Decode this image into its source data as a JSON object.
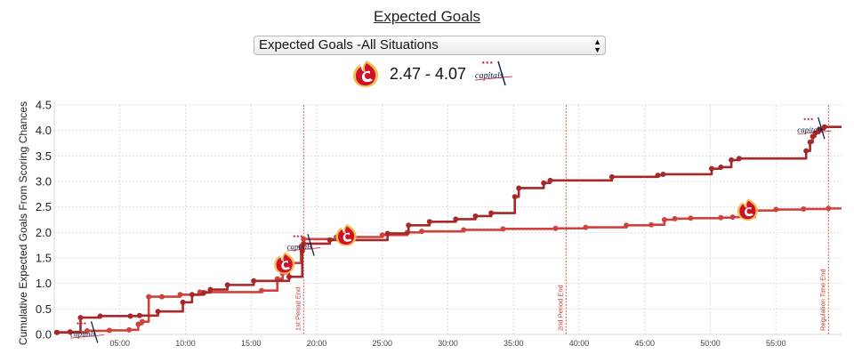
{
  "page": {
    "title": "Expected Goals",
    "situation_selected": "Expected Goals -All Situations",
    "score_text": "2.47 - 4.07",
    "home_logo_icon": "calgary-flames-logo",
    "away_logo_icon": "washington-capitals-logo",
    "away_logo_wordmark": "capitals"
  },
  "colors": {
    "flames_line": "#d0423c",
    "capitals_line": "#a72828",
    "period_marker": "#c0392b",
    "flames_red": "#ce1126",
    "flames_gold": "#f3bc52",
    "capitals_navy": "#041e42"
  },
  "chart_data": {
    "type": "line",
    "title": "",
    "xlabel": "",
    "ylabel": "Cumulative Expected Goals From Scoring Chances",
    "xlim": [
      0,
      60
    ],
    "ylim": [
      0,
      4.5
    ],
    "grid": true,
    "x_ticks": [
      "05:00",
      "10:00",
      "15:00",
      "20:00",
      "25:00",
      "30:00",
      "35:00",
      "40:00",
      "45:00",
      "50:00",
      "55:00"
    ],
    "x_tick_values": [
      5,
      10,
      15,
      20,
      25,
      30,
      35,
      40,
      45,
      50,
      55
    ],
    "y_ticks": [
      "0.0",
      "0.5",
      "1.0",
      "1.5",
      "2.0",
      "2.5",
      "3.0",
      "3.5",
      "4.0",
      "4.5"
    ],
    "y_tick_values": [
      0,
      0.5,
      1,
      1.5,
      2,
      2.5,
      3,
      3.5,
      4,
      4.5
    ],
    "period_markers": [
      {
        "x": 19.0,
        "label": "1st Period End"
      },
      {
        "x": 39.0,
        "label": "2nd Period End"
      },
      {
        "x": 59.0,
        "label": "Regulation Time End"
      }
    ],
    "series": [
      {
        "team": "Calgary Flames",
        "x": [
          0.2,
          2.5,
          4.2,
          5.7,
          6.4,
          6.7,
          7.2,
          8.2,
          9.6,
          11.1,
          15.8,
          17.0,
          17.4,
          17.9,
          18.8,
          19.0,
          21.5,
          25.0,
          26.9,
          28.0,
          31.2,
          34.2,
          38.2,
          40.5,
          43.6,
          45.5,
          46.5,
          47.3,
          48.5,
          50.8,
          51.7,
          53.4,
          55.0,
          57.1,
          59.0
        ],
        "y": [
          0.04,
          0.07,
          0.08,
          0.09,
          0.2,
          0.25,
          0.74,
          0.74,
          0.78,
          0.83,
          0.86,
          1.09,
          1.2,
          1.4,
          1.72,
          1.87,
          1.91,
          1.95,
          2.0,
          2.02,
          2.05,
          2.07,
          2.08,
          2.1,
          2.14,
          2.15,
          2.25,
          2.27,
          2.28,
          2.29,
          2.3,
          2.43,
          2.45,
          2.46,
          2.47
        ]
      },
      {
        "team": "Washington Capitals",
        "x": [
          0.2,
          1.2,
          2.0,
          3.5,
          5.8,
          6.5,
          7.9,
          9.8,
          10.5,
          11.4,
          11.9,
          13.2,
          15.2,
          17.9,
          18.9,
          19.0,
          21.0,
          25.4,
          27.0,
          28.6,
          30.6,
          32.1,
          33.3,
          35.1,
          35.4,
          37.3,
          37.8,
          42.5,
          46.0,
          46.4,
          50.1,
          50.8,
          51.6,
          52.2,
          57.3,
          57.6,
          57.8,
          58.0,
          58.3,
          58.7
        ],
        "y": [
          0.04,
          0.05,
          0.33,
          0.36,
          0.36,
          0.37,
          0.45,
          0.63,
          0.78,
          0.82,
          0.88,
          0.97,
          1.05,
          1.13,
          1.63,
          1.78,
          1.85,
          1.98,
          2.14,
          2.21,
          2.26,
          2.32,
          2.38,
          2.7,
          2.87,
          2.97,
          3.02,
          3.09,
          3.12,
          3.14,
          3.25,
          3.28,
          3.42,
          3.45,
          3.6,
          3.77,
          3.88,
          3.95,
          4.02,
          4.07
        ]
      }
    ],
    "annotations": [
      {
        "type": "logo",
        "team": "Washington Capitals",
        "icon": "capitals-logo",
        "x": 2.6,
        "y": 0.06
      },
      {
        "type": "logo",
        "team": "Calgary Flames",
        "icon": "flames-logo",
        "x": 17.5,
        "y": 1.38
      },
      {
        "type": "logo",
        "team": "Washington Capitals",
        "icon": "capitals-logo",
        "x": 19.1,
        "y": 1.77
      },
      {
        "type": "logo",
        "team": "Calgary Flames",
        "icon": "flames-logo",
        "x": 22.2,
        "y": 1.93
      },
      {
        "type": "logo",
        "team": "Calgary Flames",
        "icon": "flames-logo",
        "x": 52.8,
        "y": 2.43
      },
      {
        "type": "logo",
        "team": "Washington Capitals",
        "icon": "capitals-logo",
        "x": 58.0,
        "y": 4.06
      }
    ]
  }
}
